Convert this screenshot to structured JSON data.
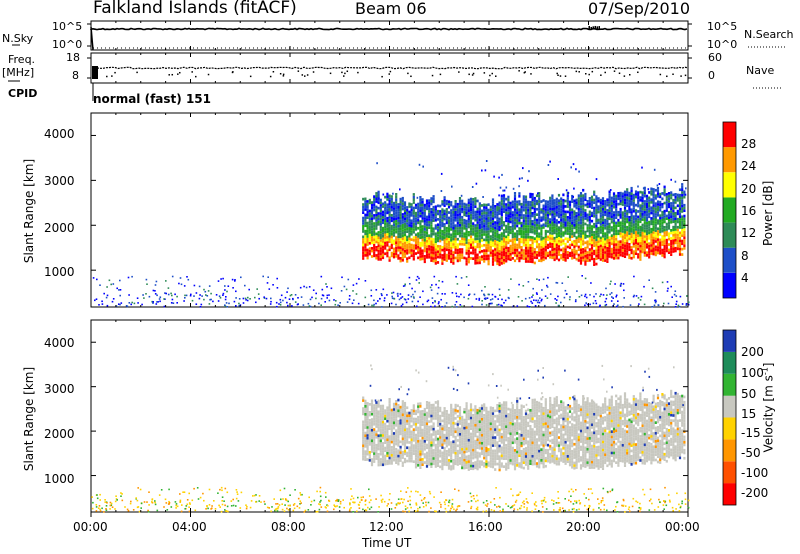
{
  "header": {
    "title": "Falkland Islands (fitACF)",
    "beam": "Beam 06",
    "date": "07/Sep/2010"
  },
  "mode_label": "normal (fast) 151",
  "chart_data": [
    {
      "type": "line",
      "name": "noise-panel",
      "left_label": "N.Sky",
      "right_label": "N.Search",
      "left_ticks": [
        "10^5",
        "10^0"
      ],
      "right_ticks": [
        "10^5",
        "10^0"
      ]
    },
    {
      "type": "line",
      "name": "frequency-panel",
      "left_label": "Freq.",
      "left_unit": "[MHz]",
      "cpid_label": "CPID",
      "right_label": "Nave",
      "left_ticks": [
        18,
        8
      ],
      "right_ticks": [
        60,
        0
      ]
    },
    {
      "type": "heatmap",
      "name": "power-panel",
      "ylabel": "Slant Range [km]",
      "ylim": [
        180,
        4500
      ],
      "yticks": [
        1000,
        2000,
        3000,
        4000
      ],
      "colorbar": {
        "label": "Power [dB]",
        "ticks": [
          4,
          8,
          12,
          16,
          20,
          24,
          28
        ],
        "colors": [
          "#0000ff",
          "#1e4fc8",
          "#2e8b57",
          "#22aa22",
          "#ffff00",
          "#ff9900",
          "#ff0000"
        ]
      },
      "echo_band": {
        "start_h": 10.9,
        "end_h": 23.9,
        "lower_km": [
          1300,
          1250,
          1200,
          1180,
          1150,
          1180,
          1250,
          1150,
          1250,
          1300,
          1400
        ],
        "upper_km": [
          2700,
          2600,
          2550,
          2500,
          2550,
          2600,
          2650,
          2650,
          2700,
          2750,
          2800
        ]
      }
    },
    {
      "type": "heatmap",
      "name": "velocity-panel",
      "ylabel": "Slant Range [km]",
      "ylim": [
        180,
        4500
      ],
      "yticks": [
        1000,
        2000,
        3000,
        4000
      ],
      "colorbar": {
        "label": "Velocity [m s",
        "label_sup": "-1",
        "label_end": "]",
        "ticks": [
          200,
          100,
          50,
          15,
          -15,
          -50,
          -100,
          -200
        ],
        "colors": [
          "#1e3cb4",
          "#1e8c5a",
          "#32b432",
          "#c8c8c0",
          "#ffd200",
          "#ff9600",
          "#ff5000",
          "#ff0000"
        ]
      }
    }
  ],
  "xaxis": {
    "label": "Time UT",
    "ticks": [
      "00:00",
      "04:00",
      "08:00",
      "12:00",
      "16:00",
      "20:00",
      "00:00"
    ],
    "range_h": [
      0,
      24
    ]
  }
}
